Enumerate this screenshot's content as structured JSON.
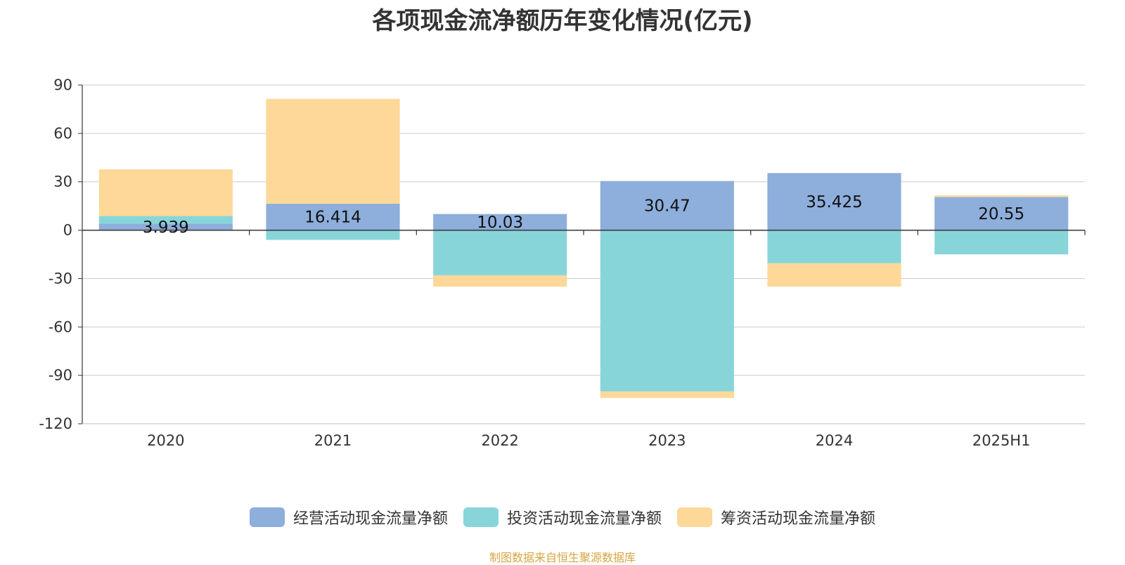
{
  "chart_data": {
    "type": "bar",
    "stacked": true,
    "title": "各项现金流净额历年变化情况(亿元)",
    "categories": [
      "2020",
      "2021",
      "2022",
      "2023",
      "2024",
      "2025H1"
    ],
    "ylim": [
      -120,
      90
    ],
    "yticks": [
      "90",
      "60",
      "30",
      "0",
      "-30",
      "-60",
      "-90",
      "-120"
    ],
    "grid": true,
    "legend_position": "bottom",
    "series": [
      {
        "name": "经营活动现金流量净额",
        "color": "#8eaedb",
        "values": [
          3.939,
          16.414,
          10.03,
          30.47,
          35.425,
          20.55
        ],
        "labels": [
          "3.939",
          "16.414",
          "10.03",
          "30.47",
          "35.425",
          "20.55"
        ]
      },
      {
        "name": "投资活动现金流量净额",
        "color": "#88d5d9",
        "values": [
          4.8,
          -6,
          -28,
          -100,
          -20.5,
          -15
        ]
      },
      {
        "name": "筹资活动现金流量净额",
        "color": "#fdd898",
        "values": [
          29,
          65,
          -7,
          -4,
          -14.5,
          1
        ]
      }
    ]
  },
  "source": "制图数据来自恒生聚源数据库"
}
